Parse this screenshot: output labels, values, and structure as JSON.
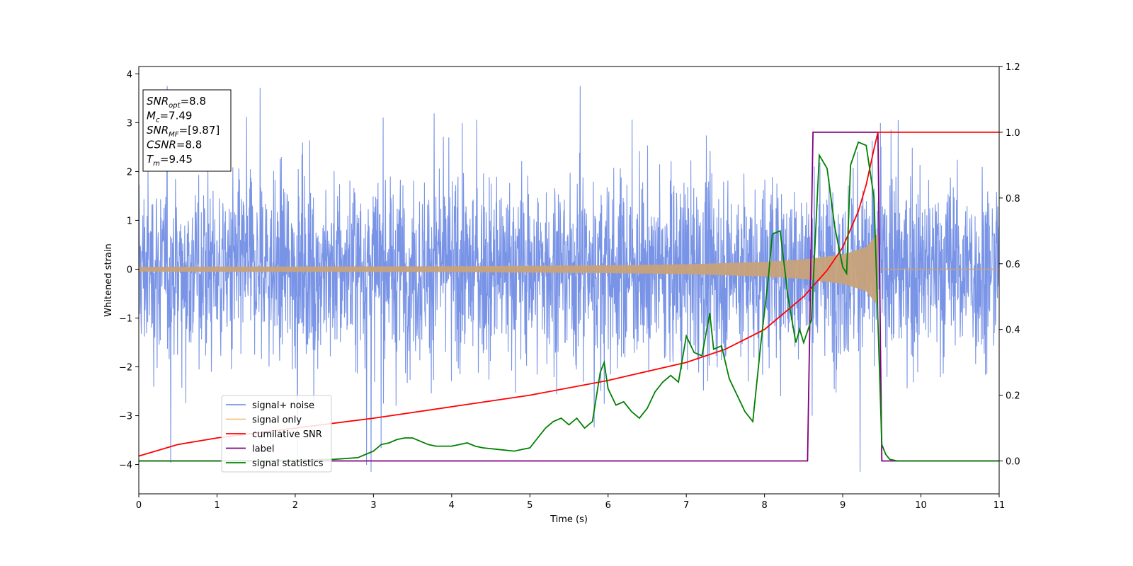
{
  "chart_data": {
    "type": "line",
    "xlabel": "Time (s)",
    "ylabel": "Whitened strain",
    "xlim": [
      0,
      11
    ],
    "ylim": [
      -4.6,
      4.15
    ],
    "y2lim": [
      -0.1,
      1.2
    ],
    "x_ticks": [
      0,
      1,
      2,
      3,
      4,
      5,
      6,
      7,
      8,
      9,
      10,
      11
    ],
    "y_ticks": [
      -4,
      -3,
      -2,
      -1,
      0,
      1,
      2,
      3,
      4
    ],
    "y2_ticks": [
      "0.0",
      "0.2",
      "0.4",
      "0.6",
      "0.8",
      "1.0",
      "1.2"
    ],
    "grid": false,
    "legend_position": "lower-left",
    "annotation": [
      {
        "base": "SNR",
        "sub": "opt",
        "rest": "=8.8"
      },
      {
        "base": "M",
        "sub": "c",
        "rest": "=7.49"
      },
      {
        "base": "SNR",
        "sub": "MF",
        "rest": "=[9.87]"
      },
      {
        "base": "CSNR",
        "sub": "",
        "rest": "=8.8"
      },
      {
        "base": "T",
        "sub": "m",
        "rest": "=9.45"
      }
    ],
    "series": [
      {
        "name": "signal+ noise",
        "color": "#7994e6",
        "axis": "left",
        "kind": "noise",
        "noise_range": [
          -4.15,
          3.75
        ],
        "typical_amplitude": 1.5
      },
      {
        "name": "signal only",
        "color": "#f5c07f",
        "axis": "left",
        "kind": "chirp",
        "envelope_x": [
          0,
          2,
          4,
          6,
          7,
          8,
          8.5,
          9,
          9.3,
          9.45
        ],
        "envelope_y": [
          0.05,
          0.055,
          0.06,
          0.08,
          0.1,
          0.15,
          0.2,
          0.3,
          0.45,
          0.75
        ]
      },
      {
        "name": "cumilative SNR",
        "color": "#ff0000",
        "axis": "right",
        "x": [
          0,
          0.5,
          1,
          2,
          3,
          4,
          5,
          6,
          7,
          7.5,
          8,
          8.5,
          8.8,
          9.0,
          9.2,
          9.3,
          9.4,
          9.45,
          11
        ],
        "y": [
          0.015,
          0.05,
          0.07,
          0.1,
          0.13,
          0.165,
          0.2,
          0.245,
          0.3,
          0.34,
          0.4,
          0.5,
          0.58,
          0.65,
          0.76,
          0.84,
          0.95,
          1.0,
          1.0
        ]
      },
      {
        "name": "label",
        "color": "#800080",
        "axis": "right",
        "x": [
          0,
          8.55,
          8.62,
          9.45,
          9.5,
          11
        ],
        "y": [
          0,
          0,
          1,
          1,
          0,
          1.1e-08
        ]
      },
      {
        "name": "signal statistics",
        "color": "#008000",
        "axis": "right",
        "x": [
          0,
          1,
          2,
          2.5,
          2.8,
          3.0,
          3.1,
          3.2,
          3.3,
          3.4,
          3.5,
          3.6,
          3.7,
          3.8,
          4.0,
          4.2,
          4.3,
          4.4,
          4.6,
          4.8,
          4.9,
          5.0,
          5.1,
          5.2,
          5.3,
          5.4,
          5.5,
          5.6,
          5.7,
          5.8,
          5.9,
          5.95,
          6.0,
          6.1,
          6.2,
          6.3,
          6.4,
          6.5,
          6.6,
          6.7,
          6.8,
          6.9,
          7.0,
          7.1,
          7.2,
          7.3,
          7.35,
          7.45,
          7.55,
          7.65,
          7.75,
          7.85,
          7.95,
          8.05,
          8.1,
          8.2,
          8.3,
          8.4,
          8.45,
          8.5,
          8.6,
          8.7,
          8.8,
          8.9,
          9.0,
          9.05,
          9.1,
          9.2,
          9.3,
          9.4,
          9.5,
          9.55,
          9.6,
          9.7,
          11
        ],
        "y": [
          0,
          0,
          0.002,
          0.005,
          0.01,
          0.03,
          0.05,
          0.055,
          0.065,
          0.07,
          0.07,
          0.06,
          0.05,
          0.045,
          0.045,
          0.055,
          0.045,
          0.04,
          0.035,
          0.03,
          0.035,
          0.04,
          0.07,
          0.1,
          0.12,
          0.13,
          0.11,
          0.13,
          0.1,
          0.12,
          0.27,
          0.3,
          0.22,
          0.17,
          0.18,
          0.15,
          0.13,
          0.16,
          0.21,
          0.24,
          0.26,
          0.24,
          0.38,
          0.33,
          0.32,
          0.45,
          0.34,
          0.35,
          0.25,
          0.2,
          0.15,
          0.12,
          0.35,
          0.56,
          0.69,
          0.7,
          0.5,
          0.36,
          0.4,
          0.36,
          0.43,
          0.93,
          0.89,
          0.71,
          0.59,
          0.57,
          0.9,
          0.97,
          0.96,
          0.8,
          0.05,
          0.02,
          0.005,
          0.0,
          0.0
        ]
      }
    ]
  }
}
